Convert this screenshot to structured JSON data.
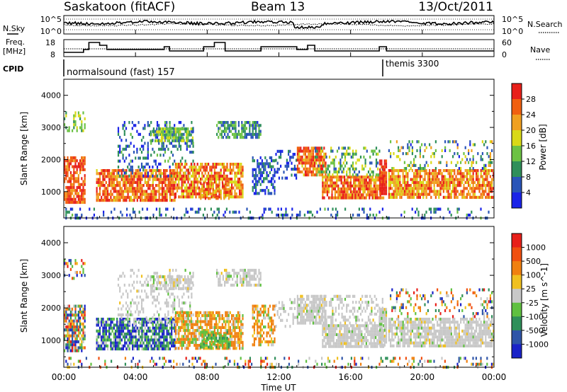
{
  "header": {
    "station": "Saskatoon (fitACF)",
    "beam": "Beam 13",
    "date": "13/Oct/2011"
  },
  "noise_panel": {
    "left_label": "N.Sky",
    "right_label": "N.Search",
    "left_ticks": [
      "10^5",
      "10^0"
    ],
    "right_ticks": [
      "10^5",
      "10^0"
    ]
  },
  "freq_panel": {
    "left_label_1": "Freq.",
    "left_label_2": "[MHz]",
    "right_label": "Nave",
    "left_ticks": [
      "18",
      "8"
    ],
    "right_ticks": [
      "60",
      "0"
    ]
  },
  "cpid": {
    "label": "CPID",
    "modes": [
      {
        "name": "normalsound (fast) 157",
        "start_hour": 0
      },
      {
        "name": "themis 3300",
        "start_hour": 18
      }
    ]
  },
  "x_axis": {
    "label": "Time UT",
    "ticks": [
      "00:00",
      "04:00",
      "08:00",
      "12:00",
      "16:00",
      "20:00",
      "00:00"
    ]
  },
  "chart_data": [
    {
      "type": "heatmap",
      "name": "power",
      "ylabel": "Slant Range [km]",
      "yticks": [
        "4000",
        "3000",
        "2000",
        "1000"
      ],
      "colorbar_label": "Power [dB]",
      "colorbar_ticks": [
        "28",
        "24",
        "20",
        "16",
        "12",
        "8",
        "4"
      ],
      "colors": [
        "#1a23e8",
        "#2a55b8",
        "#2f8f5a",
        "#6cc244",
        "#d9d917",
        "#f0a020",
        "#f06010",
        "#e8201a"
      ],
      "ylim": [
        180,
        4500
      ],
      "xlim_hours": [
        0,
        24
      ]
    },
    {
      "type": "heatmap",
      "name": "velocity",
      "ylabel": "Slant Range [km]",
      "yticks": [
        "4000",
        "3000",
        "2000",
        "1000"
      ],
      "colorbar_label": "Velocity [m s^-1]",
      "colorbar_ticks": [
        "1000",
        "500",
        "100",
        "25",
        "-25",
        "-100",
        "-500",
        "-1000"
      ],
      "colors": [
        "#1a23c8",
        "#2f55a8",
        "#2f8f5a",
        "#5fc040",
        "#c8c8c8",
        "#f0c020",
        "#f08010",
        "#f05010",
        "#e8201a"
      ],
      "ylim": [
        180,
        4500
      ],
      "xlim_hours": [
        0,
        24
      ]
    }
  ]
}
